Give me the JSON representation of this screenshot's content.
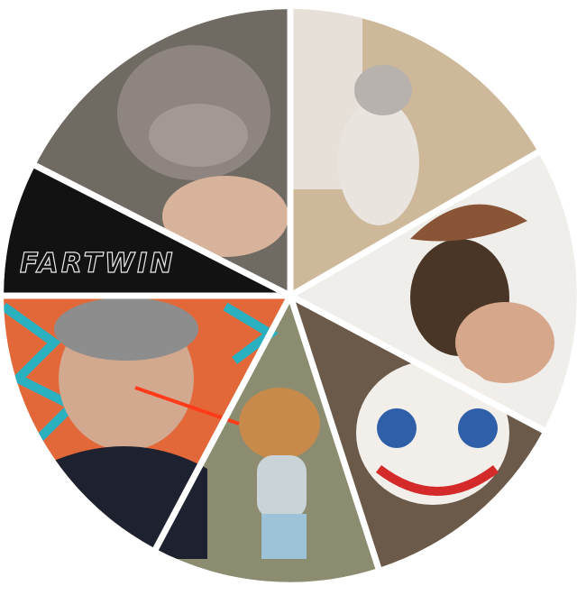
{
  "collage": {
    "caption": "FARTWIN"
  }
}
